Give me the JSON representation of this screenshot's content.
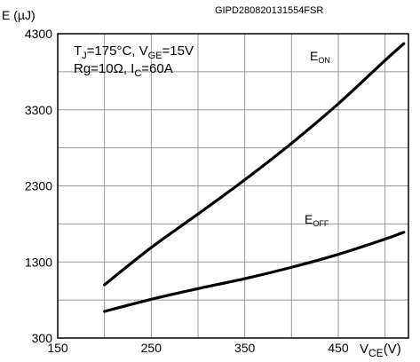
{
  "chart_data": {
    "type": "line",
    "doc_id": "GIPD280820131554FSR",
    "ylabel": "E (µJ)",
    "xlabel_main": "V",
    "xlabel_sub": "CE",
    "xlabel_unit": "(V)",
    "xlim": [
      150,
      525
    ],
    "ylim": [
      300,
      4300
    ],
    "x_ticks": [
      150,
      250,
      350,
      450
    ],
    "y_ticks": [
      300,
      1300,
      2300,
      3300,
      4300
    ],
    "grid": true,
    "conditions": {
      "line1": {
        "t_main": "T",
        "t_sub": "J",
        "t_val": "=175°C, V",
        "vge_sub": "GE",
        "vge_val": "=15V"
      },
      "line2": {
        "rg": "Rg=10Ω, I",
        "ic_sub": "C",
        "ic_val": "=60A"
      }
    },
    "series": [
      {
        "name_main": "E",
        "name_sub": "ON",
        "x": [
          200,
          250,
          300,
          350,
          400,
          450,
          500,
          520
        ],
        "y": [
          1000,
          1490,
          1930,
          2380,
          2860,
          3380,
          3950,
          4170
        ]
      },
      {
        "name_main": "E",
        "name_sub": "OFF",
        "x": [
          200,
          250,
          300,
          350,
          400,
          450,
          500,
          520
        ],
        "y": [
          650,
          810,
          950,
          1080,
          1230,
          1400,
          1600,
          1690
        ]
      }
    ]
  }
}
